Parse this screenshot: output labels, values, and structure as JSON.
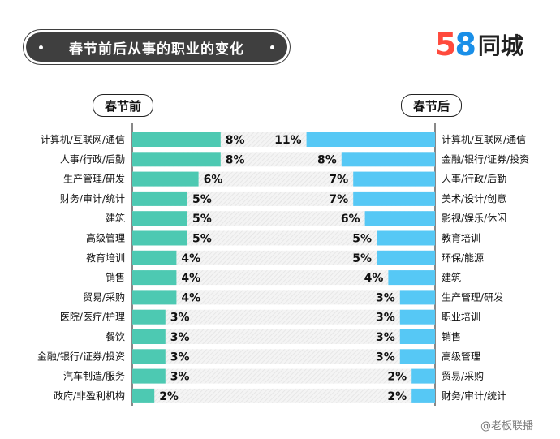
{
  "title": "春节前后从事的职业的变化",
  "brand": {
    "number_5": "5",
    "number_8": "8",
    "text": "同城",
    "color_5": "#ff4a3d",
    "color_8": "#1a8fe8"
  },
  "watermark": "@老板联播",
  "colors": {
    "left_bar": "#4dc9b2",
    "right_bar": "#56c8f5",
    "track": "#ececec"
  },
  "chart_data": [
    {
      "type": "bar",
      "title": "春节前",
      "categories": [
        "计算机/互联网/通信",
        "人事/行政/后勤",
        "生产管理/研发",
        "财务/审计/统计",
        "建筑",
        "高级管理",
        "教育培训",
        "销售",
        "贸易/采购",
        "医院/医疗/护理",
        "餐饮",
        "金融/银行/证券/投资",
        "汽车制造/服务",
        "政府/非盈利机构"
      ],
      "values": [
        8,
        8,
        6,
        5,
        5,
        5,
        4,
        4,
        4,
        3,
        3,
        3,
        3,
        2
      ],
      "value_labels": [
        "8%",
        "8%",
        "6%",
        "5%",
        "5%",
        "5%",
        "4%",
        "4%",
        "4%",
        "3%",
        "3%",
        "3%",
        "3%",
        "2%"
      ],
      "orientation": "horizontal"
    },
    {
      "type": "bar",
      "title": "春节后",
      "categories": [
        "计算机/互联网/通信",
        "金融/银行/证券/投资",
        "人事/行政/后勤",
        "美术/设计/创意",
        "影视/娱乐/休闲",
        "教育培训",
        "环保/能源",
        "建筑",
        "生产管理/研发",
        "职业培训",
        "销售",
        "高级管理",
        "贸易/采购",
        "财务/审计/统计"
      ],
      "values": [
        11,
        8,
        7,
        7,
        6,
        5,
        5,
        4,
        3,
        3,
        3,
        3,
        2,
        2
      ],
      "value_labels": [
        "11%",
        "8%",
        "7%",
        "7%",
        "6%",
        "5%",
        "5%",
        "4%",
        "3%",
        "3%",
        "3%",
        "3%",
        "2%",
        "2%"
      ],
      "orientation": "horizontal"
    }
  ]
}
